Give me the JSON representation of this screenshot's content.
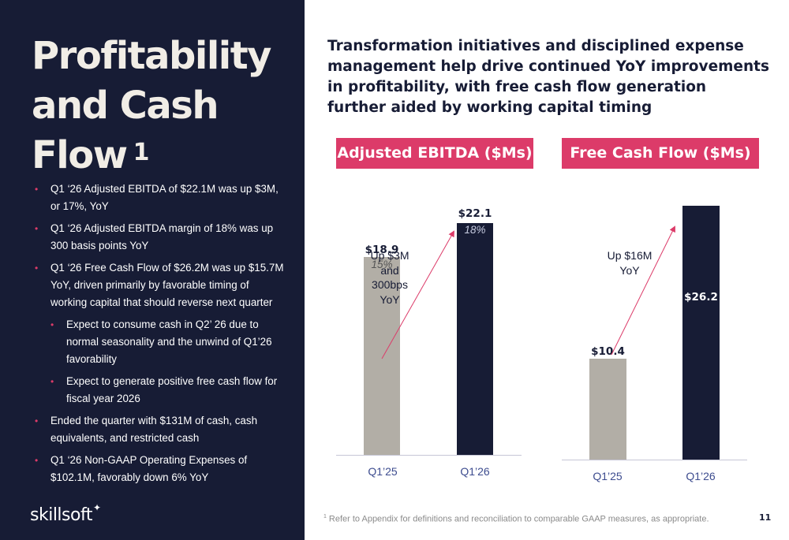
{
  "title": {
    "line1": "Profitability",
    "line2": "and Cash",
    "line3": "Flow",
    "footnote_marker": "1"
  },
  "bullets": [
    "Q1 ‘26 Adjusted EBITDA of $22.1M was up $3M, or 17%, YoY",
    "Q1 ‘26 Adjusted EBITDA margin of 18% was up 300 basis points YoY",
    "Q1 ‘26 Free Cash Flow of $26.2M was up $15.7M YoY, driven primarily by favorable timing of working capital that should reverse next quarter",
    "Expect to consume cash in Q2’ 26 due to normal seasonality and the unwind of Q1’26 favorability",
    "Expect to generate positive free cash flow for fiscal year 2026",
    "Ended the quarter with $131M of  cash, cash equivalents, and restricted cash",
    "Q1 ‘26 Non-GAAP Operating Expenses of $102.1M, favorably down 6% YoY"
  ],
  "headline": "Transformation initiatives and disciplined expense management help drive continued YoY improvements in profitability, with free cash flow generation further aided by working capital timing",
  "chart_data": [
    {
      "type": "bar",
      "title": "Adjusted EBITDA ($Ms)",
      "categories": [
        "Q1’25",
        "Q1’26"
      ],
      "values": [
        18.9,
        22.1
      ],
      "value_labels": [
        "$18.9",
        "$22.1"
      ],
      "margin_labels": [
        "15%",
        "18%"
      ],
      "annotation": [
        "Up $3M",
        "and",
        "300bps",
        "YoY"
      ],
      "colors": [
        "#b2aea6",
        "#171c35"
      ]
    },
    {
      "type": "bar",
      "title": "Free Cash Flow ($Ms)",
      "categories": [
        "Q1’25",
        "Q1’26"
      ],
      "values": [
        10.4,
        26.2
      ],
      "value_labels": [
        "$10.4",
        "$26.2"
      ],
      "annotation": [
        "Up $16M",
        "YoY"
      ],
      "colors": [
        "#b2aea6",
        "#171c35"
      ]
    }
  ],
  "logo": {
    "text": "skillsoft"
  },
  "footnote": {
    "marker": "1",
    "text": "Refer to Appendix for definitions and reconciliation to comparable GAAP measures, as appropriate."
  },
  "page_number": "11",
  "colors": {
    "navy": "#171c35",
    "pink": "#dc3b69",
    "gray_bar": "#b2aea6",
    "cream": "#f1ede6"
  }
}
